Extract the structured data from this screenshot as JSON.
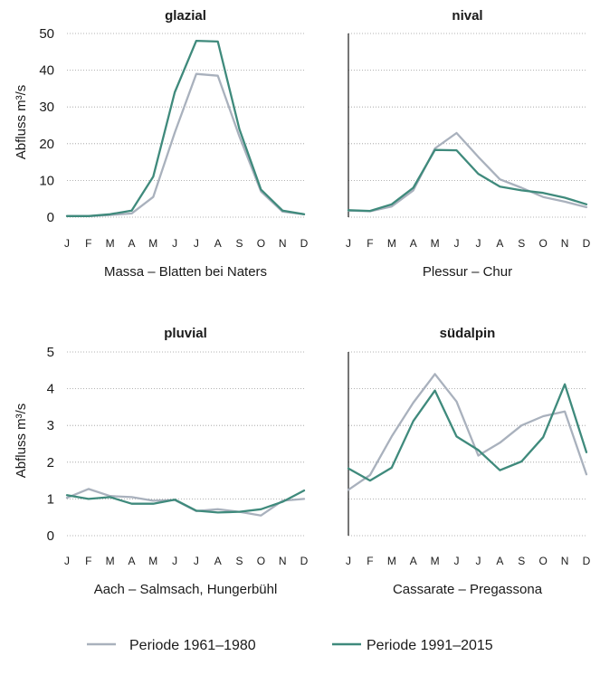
{
  "legend": {
    "series_a": "Periode 1961–1980",
    "series_b": "Periode 1991–2015"
  },
  "colors": {
    "series_a": "#a9b1bd",
    "series_b": "#3f8a7c",
    "axis": "#1a1a1a",
    "grid": "#9a9a9a"
  },
  "chart_data": [
    {
      "type": "line",
      "title": "glazial",
      "caption": "Massa – Blatten bei Naters",
      "ylabel": "Abfluss m³/s",
      "categories": [
        "J",
        "F",
        "M",
        "A",
        "M",
        "J",
        "J",
        "A",
        "S",
        "O",
        "N",
        "D"
      ],
      "ylim": [
        0,
        50
      ],
      "yticks": [
        0,
        10,
        20,
        30,
        40,
        50
      ],
      "series": [
        {
          "values": [
            0.3,
            0.3,
            0.6,
            1.0,
            5.5,
            23.0,
            39.0,
            38.5,
            22.0,
            7.0,
            1.5,
            0.8
          ]
        },
        {
          "values": [
            0.3,
            0.3,
            0.8,
            1.8,
            11.0,
            34.0,
            48.0,
            47.8,
            24.0,
            7.5,
            1.8,
            0.8
          ]
        }
      ]
    },
    {
      "type": "line",
      "title": "nival",
      "caption": "Plessur – Chur",
      "categories": [
        "J",
        "F",
        "M",
        "A",
        "M",
        "J",
        "J",
        "A",
        "S",
        "O",
        "N",
        "D"
      ],
      "ylim": [
        0,
        50
      ],
      "series": [
        {
          "values": [
            1.8,
            1.6,
            2.9,
            7.3,
            18.7,
            22.9,
            16.4,
            10.3,
            8.0,
            5.5,
            4.2,
            2.7
          ]
        },
        {
          "values": [
            1.9,
            1.7,
            3.5,
            8.0,
            18.3,
            18.2,
            11.8,
            8.3,
            7.3,
            6.6,
            5.3,
            3.5
          ]
        }
      ]
    },
    {
      "type": "line",
      "title": "pluvial",
      "caption": "Aach – Salmsach, Hungerbühl",
      "ylabel": "Abfluss m³/s",
      "categories": [
        "J",
        "F",
        "M",
        "A",
        "M",
        "J",
        "J",
        "A",
        "S",
        "O",
        "N",
        "D"
      ],
      "ylim": [
        0,
        5
      ],
      "yticks": [
        0,
        1,
        2,
        3,
        4,
        5
      ],
      "series": [
        {
          "values": [
            1.03,
            1.27,
            1.08,
            1.05,
            0.95,
            0.97,
            0.67,
            0.72,
            0.65,
            0.55,
            0.95,
            1.0
          ]
        },
        {
          "values": [
            1.1,
            1.0,
            1.05,
            0.87,
            0.87,
            0.98,
            0.68,
            0.63,
            0.65,
            0.72,
            0.92,
            1.23
          ]
        }
      ]
    },
    {
      "type": "line",
      "title": "südalpin",
      "caption": "Cassarate – Pregassona",
      "categories": [
        "J",
        "F",
        "M",
        "A",
        "M",
        "J",
        "J",
        "A",
        "S",
        "O",
        "N",
        "D"
      ],
      "ylim": [
        0,
        5
      ],
      "series": [
        {
          "values": [
            1.25,
            1.65,
            2.7,
            3.62,
            4.4,
            3.65,
            2.18,
            2.53,
            3.0,
            3.25,
            3.38,
            1.67
          ]
        },
        {
          "values": [
            1.83,
            1.5,
            1.85,
            3.12,
            3.95,
            2.7,
            2.33,
            1.78,
            2.02,
            2.68,
            4.12,
            2.27
          ]
        }
      ]
    }
  ]
}
